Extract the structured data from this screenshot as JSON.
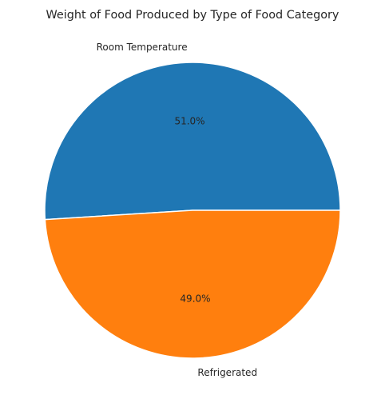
{
  "chart_data": {
    "type": "pie",
    "title": "Weight of Food Produced by Type of Food Category",
    "slices": [
      {
        "label": "Room Temperature",
        "value": 51.0,
        "pct_label": "51.0%",
        "color": "#1f77b4"
      },
      {
        "label": "Refrigerated",
        "value": 49.0,
        "pct_label": "49.0%",
        "color": "#ff7f0e"
      }
    ],
    "start_angle": "0 degrees (3 o'clock), counter-clockwise",
    "edge_color": "#ffffff"
  }
}
